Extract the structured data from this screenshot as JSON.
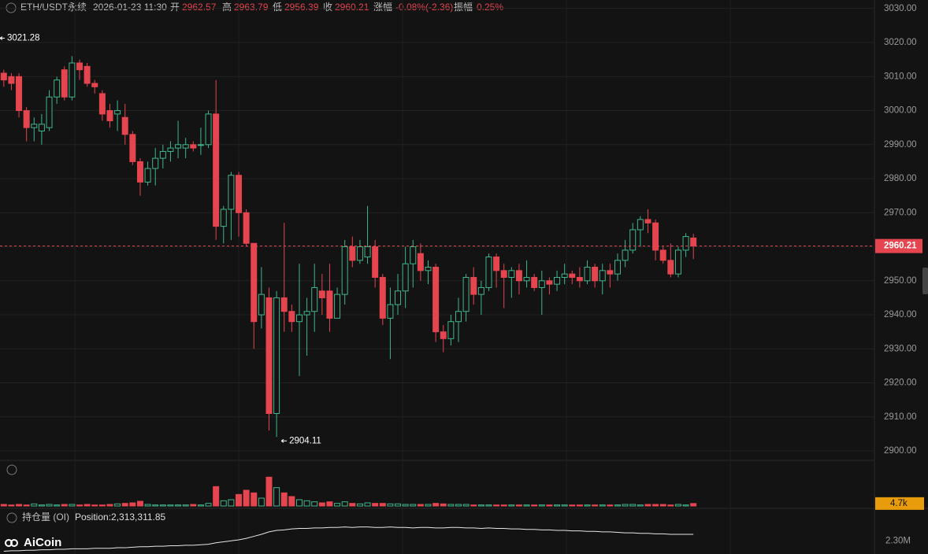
{
  "header": {
    "symbol": "ETH/USDT永续",
    "time": "2026-01-23 11:30",
    "open_label": "开",
    "high_label": "高",
    "low_label": "低",
    "close_label": "收",
    "change_label": "涨幅",
    "change": "-0.08%(-2.36)",
    "amplitude_label": "振幅",
    "amplitude": "0.25%"
  },
  "watermark": "AiCoin",
  "chart_data": [
    {
      "type": "candlestick",
      "up_color": "#3fb68b",
      "down_color": "#e5454f",
      "grid": true,
      "open": [
        3011,
        3010,
        3010,
        3000,
        2995,
        2994,
        2995,
        3004,
        3012,
        3004,
        3014,
        3013,
        3008,
        3005,
        3000,
        2999,
        2998,
        2993,
        2985,
        2979,
        2983,
        2986,
        2988,
        2989,
        2989,
        2990,
        2990,
        2990,
        2999,
        2966,
        2971,
        2981,
        2970,
        2961,
        2940,
        2945,
        2911,
        2945,
        2941,
        2938,
        2940,
        2941,
        2947,
        2947,
        2939,
        2946,
        2960,
        2956,
        2957,
        2960,
        2951,
        2939,
        2943,
        2947,
        2955,
        2958,
        2953,
        2954,
        2935,
        2933,
        2938,
        2941,
        2951,
        2946,
        2948,
        2957,
        2953,
        2951,
        2953,
        2950,
        2951,
        2948,
        2950,
        2949,
        2951,
        2952,
        2951,
        2950,
        2954,
        2950,
        2953,
        2952,
        2956,
        2959,
        2965,
        2968,
        2967,
        2959,
        2956,
        2952,
        2959,
        2962.57
      ],
      "high": [
        3012,
        3011,
        3011,
        3001,
        2998,
        2999,
        3006,
        3010,
        3013,
        3016,
        3015,
        3014,
        3009,
        3006,
        3002,
        3003,
        3002,
        2994,
        2986,
        2985,
        2989,
        2990,
        2991,
        2997,
        2992,
        2991,
        2995,
        3000,
        3009,
        2972,
        2982,
        2982,
        2971,
        2961,
        2954,
        2948,
        2947,
        2967,
        2943,
        2955,
        2945,
        2955,
        2952,
        2955,
        2948,
        2962,
        2963,
        2962,
        2972,
        2962,
        2952,
        2948,
        2952,
        2960,
        2962,
        2961,
        2956,
        2955,
        2937,
        2940,
        2945,
        2952,
        2954,
        2950,
        2958,
        2958,
        2955,
        2954,
        2955,
        2956,
        2952,
        2953,
        2951,
        2953,
        2955,
        2953,
        2954,
        2956,
        2955,
        2955,
        2955,
        2958,
        2962,
        2967,
        2969,
        2971,
        2968,
        2960,
        2961,
        2960,
        2964,
        2963.79
      ],
      "low": [
        3007,
        3006,
        2998,
        2991,
        2991,
        2990,
        2994,
        3002,
        3003,
        3003,
        3009,
        3007,
        3005,
        2997,
        2995,
        2994,
        2990,
        2984,
        2975,
        2978,
        2978,
        2983,
        2985,
        2986,
        2986,
        2988,
        2987,
        2989,
        2962,
        2961,
        2962,
        2963,
        2960,
        2930,
        2936,
        2906,
        2904.11,
        2935,
        2935,
        2922,
        2928,
        2935,
        2940,
        2935,
        2939,
        2943,
        2954,
        2955,
        2955,
        2948,
        2937,
        2927,
        2940,
        2942,
        2948,
        2950,
        2949,
        2932,
        2929,
        2931,
        2932,
        2938,
        2943,
        2940,
        2947,
        2948,
        2942,
        2945,
        2946,
        2948,
        2947,
        2940,
        2946,
        2947,
        2949,
        2949,
        2948,
        2949,
        2948,
        2946,
        2948,
        2950,
        2954,
        2958,
        2960,
        2964,
        2956,
        2955,
        2951,
        2951,
        2957,
        2956.39
      ],
      "close": [
        3009,
        3008,
        3000,
        2995,
        2996,
        2996,
        3004,
        3009,
        3004,
        3014,
        3012,
        3008,
        3007,
        2999,
        2997,
        3000,
        2993,
        2985,
        2979,
        2983,
        2986,
        2988,
        2989,
        2990,
        2990,
        2989,
        2990,
        2999,
        2966,
        2971,
        2981,
        2970,
        2961,
        2938,
        2946,
        2911,
        2945,
        2941,
        2938,
        2940,
        2941,
        2948,
        2945,
        2939,
        2946,
        2960,
        2956,
        2960,
        2960,
        2951,
        2939,
        2943,
        2947,
        2955,
        2960,
        2953,
        2954,
        2935,
        2933,
        2938,
        2941,
        2951,
        2946,
        2948,
        2957,
        2953,
        2951,
        2953,
        2950,
        2951,
        2948,
        2950,
        2949,
        2951,
        2952,
        2951,
        2950,
        2954,
        2950,
        2953,
        2952,
        2956,
        2959,
        2965,
        2968,
        2967,
        2959,
        2956,
        2952,
        2959,
        2963,
        2960.21
      ],
      "visible_high": 3021.28,
      "ylim": [
        2897.7,
        3032.5
      ],
      "yticks": [
        {
          "value": 2900,
          "label": "2900.00"
        },
        {
          "value": 2910,
          "label": "2910.00"
        },
        {
          "value": 2920,
          "label": "2920.00"
        },
        {
          "value": 2930,
          "label": "2930.00"
        },
        {
          "value": 2940,
          "label": "2940.00"
        },
        {
          "value": 2950,
          "label": "2950.00"
        },
        {
          "value": 2960,
          "label": "2960.00"
        },
        {
          "value": 2970,
          "label": "2970.00"
        },
        {
          "value": 2980,
          "label": "2980.00"
        },
        {
          "value": 2990,
          "label": "2990.00"
        },
        {
          "value": 3000,
          "label": "3000.00"
        },
        {
          "value": 3010,
          "label": "3010.00"
        },
        {
          "value": 3020,
          "label": "3020.00"
        },
        {
          "value": 3030,
          "label": "3030.00"
        }
      ]
    },
    {
      "type": "bar",
      "values": [
        3,
        2,
        3,
        2,
        4,
        2,
        3,
        2,
        3,
        3,
        2,
        3,
        2,
        2,
        3,
        4,
        5,
        6,
        9,
        3,
        2,
        2,
        2,
        2,
        2,
        3,
        2,
        5,
        37,
        10,
        12,
        22,
        30,
        25,
        15,
        55,
        35,
        25,
        18,
        12,
        10,
        8,
        6,
        8,
        5,
        8,
        5,
        4,
        6,
        5,
        5,
        4,
        4,
        3,
        3,
        3,
        3,
        5,
        4,
        3,
        3,
        3,
        2,
        2,
        2,
        2,
        2,
        2,
        2,
        2,
        2,
        2,
        2,
        2,
        2,
        2,
        2,
        2,
        2,
        2,
        2,
        2,
        3,
        3,
        2,
        3,
        3,
        3,
        2,
        3,
        2,
        4.7
      ],
      "ylim": [
        0,
        60
      ],
      "yticks": [
        {
          "value": 4.7,
          "label": "4.7k"
        }
      ]
    },
    {
      "type": "line",
      "title": "持仓量 (OI)",
      "subtitle": "Position:2,313,311.85",
      "color": "#e6e6e6",
      "values": [
        2.279,
        2.28,
        2.28,
        2.281,
        2.281,
        2.282,
        2.282,
        2.283,
        2.283,
        2.284,
        2.284,
        2.284,
        2.285,
        2.285,
        2.285,
        2.286,
        2.286,
        2.287,
        2.288,
        2.288,
        2.289,
        2.289,
        2.29,
        2.29,
        2.291,
        2.291,
        2.292,
        2.293,
        2.296,
        2.298,
        2.3,
        2.302,
        2.305,
        2.309,
        2.313,
        2.318,
        2.321,
        2.322,
        2.324,
        2.325,
        2.325,
        2.326,
        2.326,
        2.327,
        2.327,
        2.328,
        2.327,
        2.328,
        2.328,
        2.327,
        2.327,
        2.328,
        2.327,
        2.327,
        2.326,
        2.327,
        2.327,
        2.326,
        2.326,
        2.327,
        2.327,
        2.326,
        2.326,
        2.325,
        2.326,
        2.325,
        2.325,
        2.324,
        2.324,
        2.323,
        2.323,
        2.322,
        2.322,
        2.321,
        2.321,
        2.32,
        2.32,
        2.319,
        2.319,
        2.318,
        2.318,
        2.317,
        2.316,
        2.316,
        2.315,
        2.315,
        2.314,
        2.314,
        2.313,
        2.313,
        2.313,
        2.313
      ],
      "ylim": [
        2.275,
        2.34
      ],
      "yticks": [
        {
          "value": 2.3,
          "label": "2.30M"
        }
      ]
    }
  ]
}
